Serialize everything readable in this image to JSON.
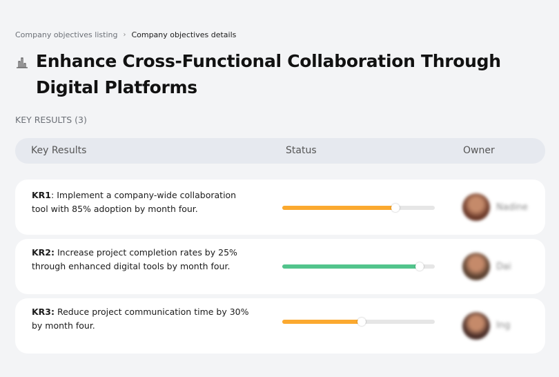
{
  "breadcrumb": {
    "items": [
      "Company objectives listing",
      "Company objectives details"
    ]
  },
  "title": "Enhance Cross-Functional Collaboration Through Digital Platforms",
  "title_icon": "building-chart-icon",
  "key_results_label": "KEY RESULTS (3)",
  "table": {
    "headers": [
      "Key Results",
      "Status",
      "Owner"
    ],
    "rows": [
      {
        "code": "KR1",
        "text": ": Implement a company-wide collaboration tool with 85% adoption by month four.",
        "progress": 74,
        "color": "#fba92f",
        "owner": "Nadine",
        "avatar_color": "#6b3a2a"
      },
      {
        "code": "KR2:",
        "text": " Increase project completion rates by 25% through enhanced digital tools by month four.",
        "progress": 90,
        "color": "#52c48c",
        "owner": "Dai",
        "avatar_color": "#5a4030"
      },
      {
        "code": "KR3:",
        "text": " Reduce project communication time by 30% by month four.",
        "progress": 52,
        "color": "#fba92f",
        "owner": "Ing",
        "avatar_color": "#4a2e28"
      }
    ]
  }
}
